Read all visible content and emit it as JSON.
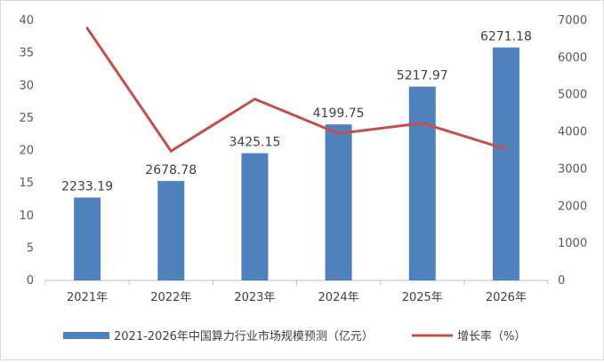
{
  "chart_data": {
    "type": "bar",
    "categories": [
      "2021年",
      "2022年",
      "2023年",
      "2024年",
      "2025年",
      "2026年"
    ],
    "series": [
      {
        "name": "2021-2026年中国算力行业市场规模预测（亿元）",
        "type": "bar",
        "axis": "right",
        "color": "#4f81bd",
        "values": [
          2233.19,
          2678.78,
          3425.15,
          4199.75,
          5217.97,
          6271.18
        ],
        "labels": [
          "2233.19",
          "2678.78",
          "3425.15",
          "4199.75",
          "5217.97",
          "6271.18"
        ]
      },
      {
        "name": "增长率（%）",
        "type": "line",
        "axis": "left",
        "color": "#c0504d",
        "values": [
          38.8,
          19.9,
          27.9,
          22.6,
          24.2,
          20.2
        ]
      }
    ],
    "y_left": {
      "min": 0,
      "max": 40,
      "ticks": [
        "0",
        "5",
        "10",
        "15",
        "20",
        "25",
        "30",
        "35",
        "40"
      ]
    },
    "y_right": {
      "min": 0,
      "max": 7000,
      "ticks": [
        "0",
        "1000",
        "2000",
        "3000",
        "4000",
        "5000",
        "6000",
        "7000"
      ]
    },
    "grid": false,
    "legend_position": "bottom"
  }
}
